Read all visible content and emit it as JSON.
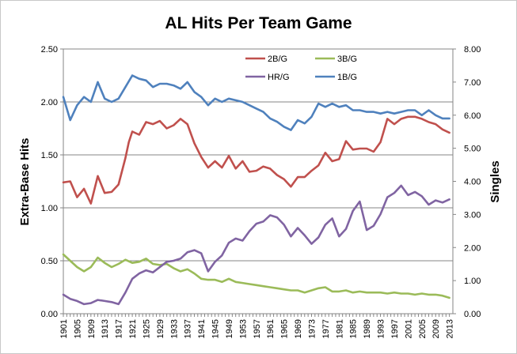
{
  "chart_data": {
    "type": "line",
    "title": "AL Hits Per Team Game",
    "ylabel": "Extra-Base Hits",
    "y2label": "Singles",
    "ylim": [
      0,
      2.5
    ],
    "y2lim": [
      0,
      8
    ],
    "yticks": [
      "0.00",
      "0.50",
      "1.00",
      "1.50",
      "2.00",
      "2.50"
    ],
    "y2ticks": [
      "0.00",
      "1.00",
      "2.00",
      "3.00",
      "4.00",
      "5.00",
      "6.00",
      "7.00",
      "8.00"
    ],
    "xticks": [
      "1901",
      "1905",
      "1909",
      "1913",
      "1917",
      "1921",
      "1925",
      "1929",
      "1933",
      "1937",
      "1941",
      "1945",
      "1949",
      "1953",
      "1957",
      "1961",
      "1965",
      "1969",
      "1973",
      "1977",
      "1981",
      "1985",
      "1989",
      "1993",
      "1997",
      "2001",
      "2005",
      "2009",
      "2013"
    ],
    "grid": true,
    "legend_position": "top-center",
    "series": [
      {
        "name": "2B/G",
        "color": "#c0504d",
        "axis": "left",
        "x": [
          1901,
          1903,
          1905,
          1907,
          1909,
          1911,
          1913,
          1915,
          1917,
          1919,
          1920,
          1921,
          1923,
          1925,
          1927,
          1929,
          1931,
          1933,
          1935,
          1937,
          1939,
          1941,
          1943,
          1945,
          1947,
          1949,
          1951,
          1953,
          1955,
          1957,
          1959,
          1961,
          1963,
          1965,
          1967,
          1969,
          1971,
          1973,
          1975,
          1977,
          1979,
          1981,
          1983,
          1985,
          1987,
          1989,
          1991,
          1993,
          1995,
          1997,
          1999,
          2001,
          2003,
          2005,
          2007,
          2009,
          2011,
          2013
        ],
        "values": [
          1.24,
          1.25,
          1.1,
          1.18,
          1.04,
          1.3,
          1.14,
          1.15,
          1.22,
          1.47,
          1.62,
          1.72,
          1.69,
          1.81,
          1.79,
          1.82,
          1.75,
          1.78,
          1.84,
          1.79,
          1.61,
          1.48,
          1.38,
          1.44,
          1.38,
          1.49,
          1.37,
          1.44,
          1.34,
          1.35,
          1.39,
          1.37,
          1.31,
          1.27,
          1.2,
          1.29,
          1.29,
          1.35,
          1.4,
          1.52,
          1.44,
          1.46,
          1.63,
          1.55,
          1.56,
          1.56,
          1.53,
          1.62,
          1.84,
          1.79,
          1.84,
          1.86,
          1.86,
          1.84,
          1.81,
          1.79,
          1.74,
          1.71
        ]
      },
      {
        "name": "3B/G",
        "color": "#9bbb59",
        "axis": "left",
        "x": [
          1901,
          1903,
          1905,
          1907,
          1909,
          1911,
          1913,
          1915,
          1917,
          1919,
          1921,
          1923,
          1925,
          1927,
          1929,
          1931,
          1933,
          1935,
          1937,
          1939,
          1941,
          1943,
          1945,
          1947,
          1949,
          1951,
          1953,
          1955,
          1957,
          1959,
          1961,
          1963,
          1965,
          1967,
          1969,
          1971,
          1973,
          1975,
          1977,
          1979,
          1981,
          1983,
          1985,
          1987,
          1989,
          1991,
          1993,
          1995,
          1997,
          1999,
          2001,
          2003,
          2005,
          2007,
          2009,
          2011,
          2013
        ],
        "values": [
          0.56,
          0.5,
          0.44,
          0.4,
          0.44,
          0.53,
          0.48,
          0.44,
          0.47,
          0.51,
          0.48,
          0.49,
          0.52,
          0.47,
          0.46,
          0.47,
          0.43,
          0.4,
          0.42,
          0.38,
          0.33,
          0.32,
          0.32,
          0.3,
          0.33,
          0.3,
          0.29,
          0.28,
          0.27,
          0.26,
          0.25,
          0.24,
          0.23,
          0.22,
          0.22,
          0.2,
          0.22,
          0.24,
          0.25,
          0.21,
          0.21,
          0.22,
          0.2,
          0.21,
          0.2,
          0.2,
          0.2,
          0.19,
          0.2,
          0.19,
          0.19,
          0.18,
          0.19,
          0.18,
          0.18,
          0.17,
          0.15
        ]
      },
      {
        "name": "HR/G",
        "color": "#8064a2",
        "axis": "left",
        "x": [
          1901,
          1903,
          1905,
          1907,
          1909,
          1911,
          1913,
          1915,
          1917,
          1919,
          1921,
          1923,
          1925,
          1927,
          1929,
          1931,
          1933,
          1935,
          1937,
          1939,
          1941,
          1943,
          1945,
          1947,
          1949,
          1951,
          1953,
          1955,
          1957,
          1959,
          1961,
          1963,
          1965,
          1967,
          1969,
          1971,
          1973,
          1975,
          1977,
          1979,
          1981,
          1983,
          1985,
          1987,
          1989,
          1991,
          1993,
          1995,
          1997,
          1999,
          2001,
          2003,
          2005,
          2007,
          2009,
          2011,
          2013
        ],
        "values": [
          0.18,
          0.14,
          0.12,
          0.09,
          0.1,
          0.13,
          0.12,
          0.11,
          0.09,
          0.2,
          0.33,
          0.38,
          0.41,
          0.39,
          0.44,
          0.49,
          0.5,
          0.52,
          0.58,
          0.6,
          0.57,
          0.4,
          0.49,
          0.55,
          0.67,
          0.71,
          0.69,
          0.78,
          0.85,
          0.87,
          0.93,
          0.91,
          0.84,
          0.73,
          0.81,
          0.74,
          0.66,
          0.72,
          0.84,
          0.9,
          0.73,
          0.8,
          0.97,
          1.06,
          0.79,
          0.83,
          0.94,
          1.1,
          1.14,
          1.21,
          1.12,
          1.15,
          1.11,
          1.03,
          1.07,
          1.05,
          1.08
        ]
      },
      {
        "name": "1B/G",
        "color": "#4f81bd",
        "axis": "right",
        "x": [
          1901,
          1903,
          1905,
          1907,
          1909,
          1911,
          1913,
          1915,
          1917,
          1919,
          1921,
          1923,
          1925,
          1927,
          1929,
          1931,
          1933,
          1935,
          1937,
          1939,
          1941,
          1943,
          1945,
          1947,
          1949,
          1951,
          1953,
          1955,
          1957,
          1959,
          1961,
          1963,
          1965,
          1967,
          1969,
          1971,
          1973,
          1975,
          1977,
          1979,
          1981,
          1983,
          1985,
          1987,
          1989,
          1991,
          1993,
          1995,
          1997,
          1999,
          2001,
          2003,
          2005,
          2007,
          2009,
          2011,
          2013
        ],
        "values": [
          6.55,
          5.85,
          6.3,
          6.55,
          6.4,
          7.0,
          6.5,
          6.4,
          6.5,
          6.85,
          7.2,
          7.1,
          7.05,
          6.85,
          6.95,
          6.95,
          6.9,
          6.8,
          7.0,
          6.7,
          6.55,
          6.3,
          6.5,
          6.4,
          6.5,
          6.45,
          6.4,
          6.3,
          6.2,
          6.1,
          5.9,
          5.8,
          5.65,
          5.55,
          5.85,
          5.75,
          5.95,
          6.35,
          6.25,
          6.35,
          6.25,
          6.3,
          6.15,
          6.15,
          6.1,
          6.1,
          6.05,
          6.1,
          6.05,
          6.1,
          6.15,
          6.15,
          6.0,
          6.15,
          6.0,
          5.9,
          5.9
        ]
      }
    ]
  }
}
